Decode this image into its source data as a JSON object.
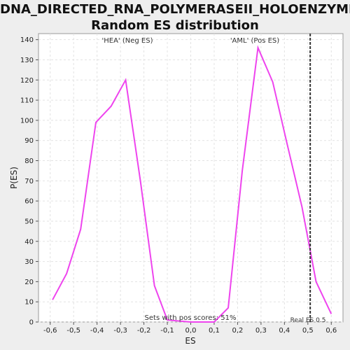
{
  "chart_data": {
    "type": "line",
    "title": [
      "DNA_DIRECTED_RNA_POLYMERASEII_HOLOENZYME:",
      "Random ES distribution"
    ],
    "xlabel": "ES",
    "ylabel": "P(ES)",
    "xlim": [
      -0.65,
      0.65
    ],
    "ylim": [
      0,
      143
    ],
    "xticks": [
      -0.6,
      -0.5,
      -0.4,
      -0.3,
      -0.2,
      -0.1,
      0.0,
      0.1,
      0.2,
      0.3,
      0.4,
      0.5,
      0.6
    ],
    "xtick_labels": [
      "-0,6",
      "-0,5",
      "-0,4",
      "-0,3",
      "-0,2",
      "-0,1",
      "0,0",
      "0,1",
      "0,2",
      "0,3",
      "0,4",
      "0,5",
      "0,6"
    ],
    "yticks": [
      0,
      10,
      20,
      30,
      40,
      50,
      60,
      70,
      80,
      90,
      100,
      110,
      120,
      130,
      140
    ],
    "grid": true,
    "series": [
      {
        "color": "#ee44ee",
        "x": [
          -0.59,
          -0.53,
          -0.47,
          -0.405,
          -0.34,
          -0.278,
          -0.215,
          -0.155,
          -0.1,
          0.0,
          0.1,
          0.16,
          0.22,
          0.287,
          0.35,
          0.41,
          0.475,
          0.535,
          0.6
        ],
        "y": [
          11,
          24,
          46,
          99,
          107,
          120,
          70,
          18,
          1,
          0,
          0,
          7,
          75,
          136,
          119,
          89,
          57,
          20,
          4
        ]
      }
    ],
    "vline": {
      "x": 0.51,
      "label": "Real ES 0.5",
      "color": "#333333"
    },
    "annotations": {
      "neg": {
        "text": "'HEA' (Neg ES)",
        "color": "#3333cc"
      },
      "pos": {
        "text": "'AML' (Pos ES)",
        "color": "#dd3333"
      },
      "footer": "Sets with pos scores: 51%"
    }
  }
}
